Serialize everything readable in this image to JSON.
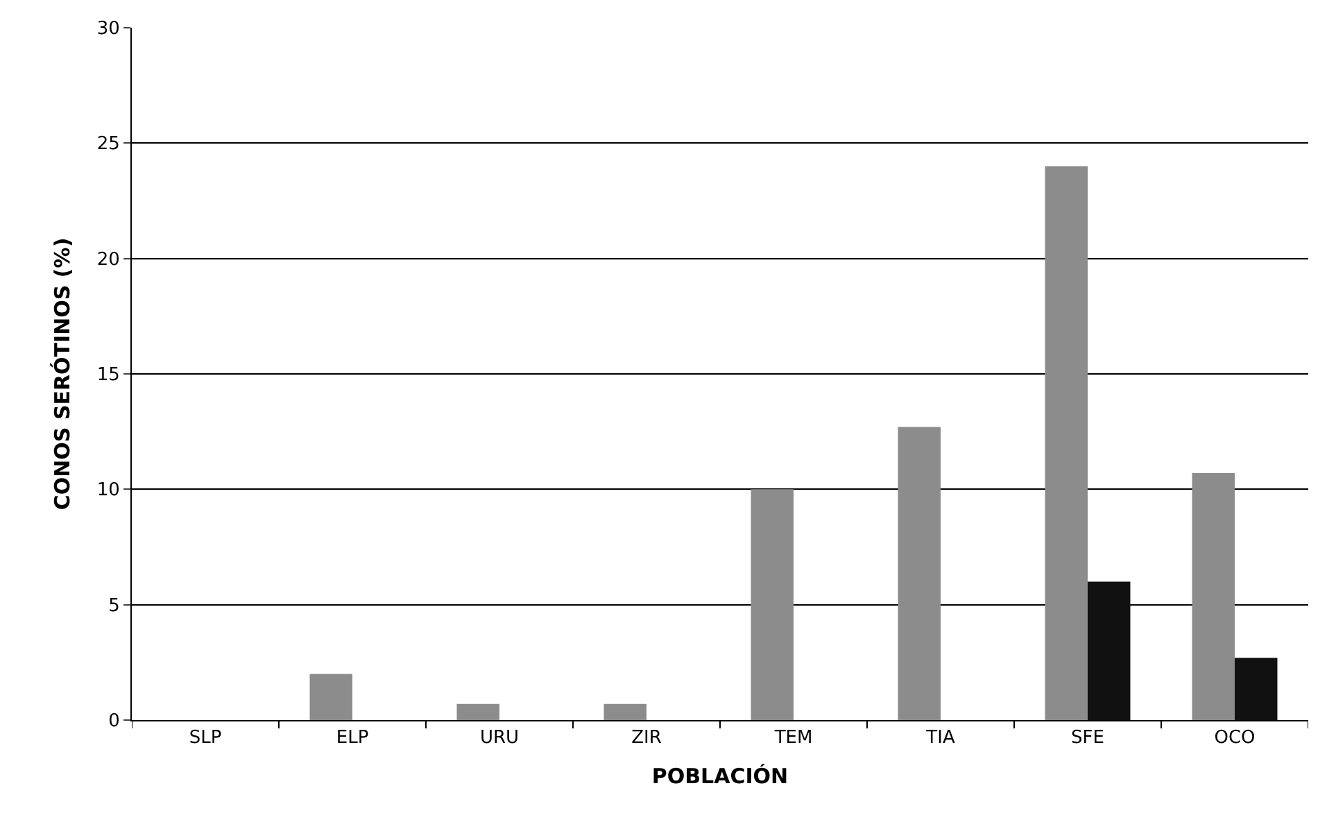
{
  "chart_data": {
    "type": "bar",
    "xlabel": "POBLACIÓN",
    "ylabel": "CONOS SERÓTINOS (%)",
    "categories": [
      "SLP",
      "ELP",
      "URU",
      "ZIR",
      "TEM",
      "TIA",
      "SFE",
      "OCO"
    ],
    "series": [
      {
        "color": "#8c8c8c",
        "values": [
          0,
          2.0,
          0.7,
          0.7,
          10.0,
          12.7,
          24.0,
          10.7
        ]
      },
      {
        "color": "#111111",
        "values": [
          0,
          0,
          0,
          0,
          0,
          0,
          6.0,
          2.7
        ]
      }
    ],
    "ylim": [
      0,
      30
    ],
    "yticks": [
      0,
      5,
      10,
      15,
      20,
      25,
      30
    ],
    "grid": "y",
    "legend": false
  }
}
